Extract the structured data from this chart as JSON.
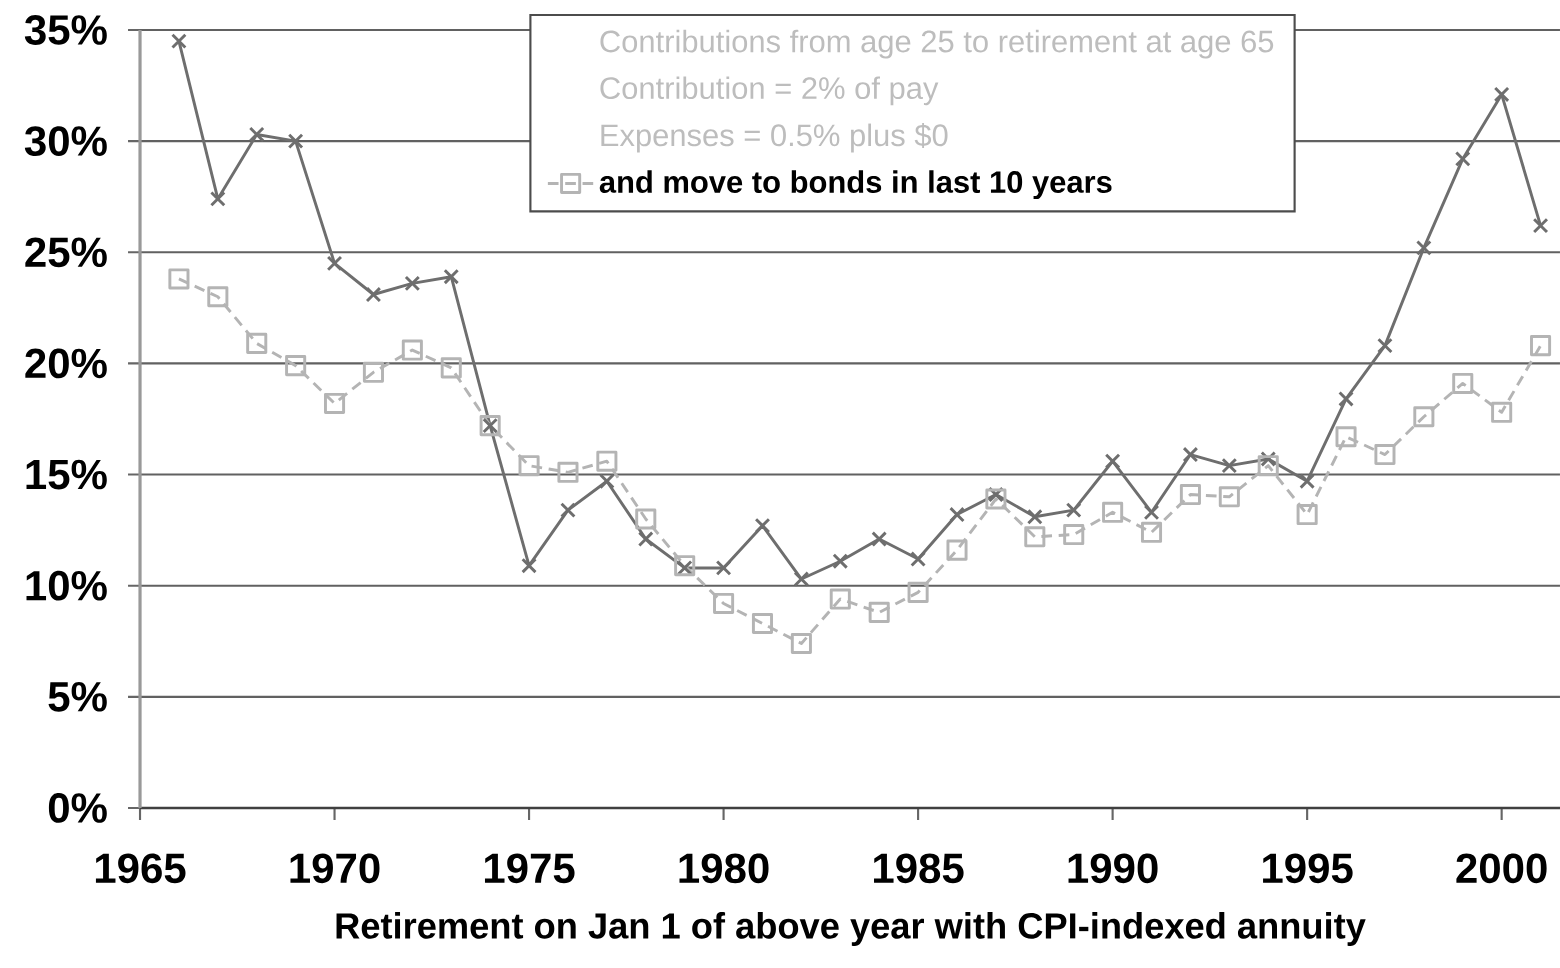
{
  "chart_data": {
    "type": "line",
    "xlabel": "Retirement on Jan 1 of above year with CPI-indexed annuity",
    "annotations": [
      "Contributions from age 25 to retirement at age 65",
      "Contribution = 2% of pay",
      "Expenses = 0.5% plus $0"
    ],
    "x": [
      1966,
      1967,
      1968,
      1969,
      1970,
      1971,
      1972,
      1973,
      1974,
      1975,
      1976,
      1977,
      1978,
      1979,
      1980,
      1981,
      1982,
      1983,
      1984,
      1985,
      1986,
      1987,
      1988,
      1989,
      1990,
      1991,
      1992,
      1993,
      1994,
      1995,
      1996,
      1997,
      1998,
      1999,
      2000,
      2001
    ],
    "series": [
      {
        "color": "#6e6e6e",
        "marker": "cross",
        "line_style": "solid",
        "values": [
          34.5,
          27.4,
          30.3,
          30.0,
          24.5,
          23.1,
          23.6,
          23.9,
          17.2,
          10.9,
          13.4,
          14.7,
          12.1,
          10.8,
          10.8,
          12.7,
          10.3,
          11.1,
          12.1,
          11.2,
          13.2,
          14.1,
          13.1,
          13.4,
          15.6,
          13.3,
          15.9,
          15.4,
          15.7,
          14.7,
          18.4,
          20.8,
          25.2,
          29.2,
          32.1,
          26.2
        ]
      },
      {
        "name": "and move to bonds in last 10 years",
        "color": "#b4b4b4",
        "marker": "square",
        "line_style": "dashed",
        "values": [
          23.8,
          23.0,
          20.9,
          19.9,
          18.2,
          19.6,
          20.6,
          19.8,
          17.2,
          15.4,
          15.1,
          15.6,
          13.0,
          10.9,
          9.2,
          8.3,
          7.4,
          9.4,
          8.8,
          9.7,
          11.6,
          13.9,
          12.2,
          12.3,
          13.3,
          12.4,
          14.1,
          14.0,
          15.4,
          13.2,
          16.7,
          15.9,
          17.6,
          19.1,
          17.8,
          20.8
        ]
      }
    ],
    "xlim": [
      1965,
      2001.5
    ],
    "xticks": [
      1965,
      1970,
      1975,
      1980,
      1985,
      1990,
      1995,
      2000
    ],
    "ylim": [
      0,
      35
    ],
    "yticks": [
      {
        "value": 0,
        "label": "0%"
      },
      {
        "value": 5,
        "label": "5%"
      },
      {
        "value": 10,
        "label": "10%"
      },
      {
        "value": 15,
        "label": "15%"
      },
      {
        "value": 20,
        "label": "20%"
      },
      {
        "value": 25,
        "label": "25%"
      },
      {
        "value": 30,
        "label": "30%"
      },
      {
        "value": 35,
        "label": "35%"
      }
    ],
    "grid": "y",
    "legend": "top"
  }
}
